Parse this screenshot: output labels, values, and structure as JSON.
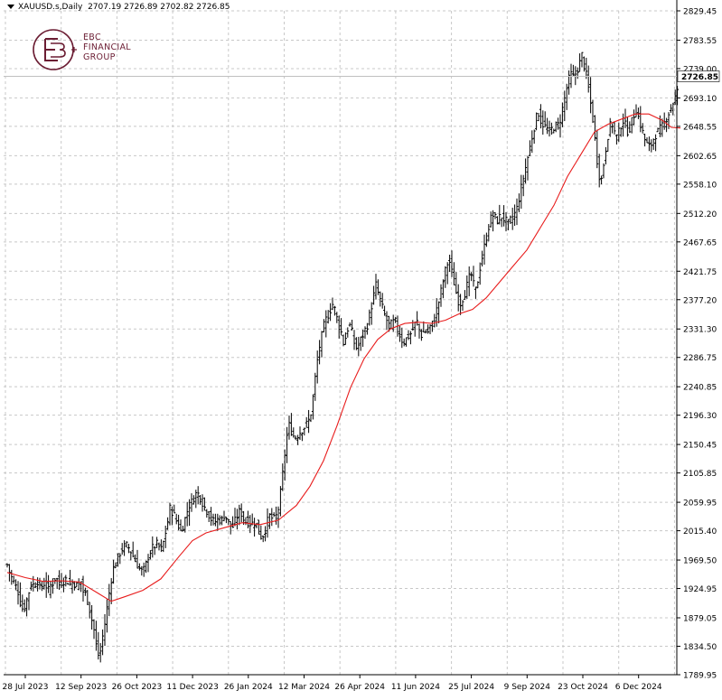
{
  "header": {
    "symbol": "XAUUSD.s,Daily",
    "ohlc": "2707.19 2726.89 2702.82 2726.85"
  },
  "logo": {
    "line1": "EBC",
    "line2": "FINANCIAL",
    "line3": "GROUP",
    "color": "#6b1d33"
  },
  "chart_data": {
    "type": "candlestick",
    "symbol": "XAUUSD.s",
    "timeframe": "Daily",
    "last_price": 2726.85,
    "last_price_label": "2726.85",
    "ylim": [
      1789.95,
      2829.45
    ],
    "y_ticks": [
      "2829.45",
      "2783.55",
      "2739.00",
      "2693.10",
      "2648.55",
      "2602.65",
      "2558.10",
      "2512.20",
      "2467.65",
      "2421.75",
      "2377.20",
      "2331.30",
      "2286.75",
      "2240.85",
      "2196.30",
      "2150.45",
      "2105.85",
      "2059.95",
      "2015.40",
      "1969.50",
      "1924.95",
      "1879.05",
      "1834.50",
      "1789.95"
    ],
    "x_ticks": [
      "28 Jul 2023",
      "12 Sep 2023",
      "26 Oct 2023",
      "11 Dec 2023",
      "26 Jan 2024",
      "12 Mar 2024",
      "26 Apr 2024",
      "11 Jun 2024",
      "25 Jul 2024",
      "9 Sep 2024",
      "23 Oct 2024",
      "6 Dec 2024"
    ],
    "grid": true,
    "colors": {
      "bars": "#000000",
      "ma": "#e81c1c",
      "grid": "#c8c8c8",
      "price_line": "#c0c0c0"
    },
    "close_series": [
      [
        0,
        1962
      ],
      [
        3,
        1948
      ],
      [
        6,
        1938
      ],
      [
        9,
        1930
      ],
      [
        12,
        1920
      ],
      [
        15,
        1900
      ],
      [
        18,
        1890
      ],
      [
        21,
        1905
      ],
      [
        24,
        1920
      ],
      [
        27,
        1935
      ],
      [
        30,
        1928
      ],
      [
        33,
        1940
      ],
      [
        36,
        1925
      ],
      [
        39,
        1930
      ],
      [
        42,
        1935
      ],
      [
        45,
        1920
      ],
      [
        48,
        1930
      ],
      [
        51,
        1935
      ],
      [
        54,
        1945
      ],
      [
        57,
        1930
      ],
      [
        60,
        1935
      ],
      [
        63,
        1938
      ],
      [
        66,
        1940
      ],
      [
        69,
        1930
      ],
      [
        72,
        1935
      ],
      [
        75,
        1932
      ],
      [
        78,
        1928
      ],
      [
        81,
        1940
      ],
      [
        84,
        1920
      ],
      [
        87,
        1915
      ],
      [
        90,
        1900
      ],
      [
        93,
        1880
      ],
      [
        96,
        1860
      ],
      [
        99,
        1830
      ],
      [
        102,
        1815
      ],
      [
        105,
        1845
      ],
      [
        108,
        1870
      ],
      [
        111,
        1900
      ],
      [
        114,
        1930
      ],
      [
        117,
        1955
      ],
      [
        120,
        1965
      ],
      [
        123,
        1975
      ],
      [
        126,
        1985
      ],
      [
        129,
        1990
      ],
      [
        132,
        1992
      ],
      [
        135,
        1988
      ],
      [
        138,
        1980
      ],
      [
        141,
        1970
      ],
      [
        144,
        1962
      ],
      [
        147,
        1955
      ],
      [
        150,
        1950
      ],
      [
        153,
        1960
      ],
      [
        156,
        1975
      ],
      [
        159,
        1985
      ],
      [
        162,
        1990
      ],
      [
        165,
        1995
      ],
      [
        168,
        1990
      ],
      [
        171,
        1985
      ],
      [
        174,
        2005
      ],
      [
        177,
        2025
      ],
      [
        180,
        2050
      ],
      [
        183,
        2045
      ],
      [
        186,
        2035
      ],
      [
        189,
        2025
      ],
      [
        192,
        2015
      ],
      [
        195,
        2025
      ],
      [
        198,
        2040
      ],
      [
        201,
        2055
      ],
      [
        204,
        2060
      ],
      [
        207,
        2070
      ],
      [
        210,
        2075
      ],
      [
        213,
        2070
      ],
      [
        216,
        2060
      ],
      [
        219,
        2050
      ],
      [
        222,
        2045
      ],
      [
        225,
        2035
      ],
      [
        228,
        2030
      ],
      [
        231,
        2030
      ],
      [
        234,
        2035
      ],
      [
        237,
        2030
      ],
      [
        240,
        2040
      ],
      [
        243,
        2035
      ],
      [
        246,
        2025
      ],
      [
        249,
        2020
      ],
      [
        252,
        2030
      ],
      [
        255,
        2040
      ],
      [
        258,
        2048
      ],
      [
        261,
        2035
      ],
      [
        264,
        2030
      ],
      [
        267,
        2030
      ],
      [
        270,
        2025
      ],
      [
        273,
        2030
      ],
      [
        276,
        2025
      ],
      [
        279,
        2010
      ],
      [
        282,
        2005
      ],
      [
        285,
        2015
      ],
      [
        288,
        2030
      ],
      [
        291,
        2040
      ],
      [
        294,
        2032
      ],
      [
        297,
        2035
      ],
      [
        300,
        2050
      ],
      [
        303,
        2080
      ],
      [
        306,
        2120
      ],
      [
        309,
        2160
      ],
      [
        312,
        2180
      ],
      [
        315,
        2170
      ],
      [
        318,
        2160
      ],
      [
        321,
        2165
      ],
      [
        324,
        2170
      ],
      [
        327,
        2175
      ],
      [
        330,
        2180
      ],
      [
        333,
        2185
      ],
      [
        336,
        2200
      ],
      [
        339,
        2230
      ],
      [
        342,
        2270
      ],
      [
        345,
        2300
      ],
      [
        348,
        2320
      ],
      [
        351,
        2340
      ],
      [
        354,
        2350
      ],
      [
        357,
        2360
      ],
      [
        360,
        2370
      ],
      [
        363,
        2360
      ],
      [
        366,
        2340
      ],
      [
        369,
        2330
      ],
      [
        372,
        2310
      ],
      [
        375,
        2320
      ],
      [
        378,
        2340
      ],
      [
        381,
        2330
      ],
      [
        384,
        2310
      ],
      [
        387,
        2300
      ],
      [
        390,
        2310
      ],
      [
        393,
        2320
      ],
      [
        396,
        2330
      ],
      [
        399,
        2340
      ],
      [
        402,
        2360
      ],
      [
        405,
        2380
      ],
      [
        408,
        2400
      ],
      [
        411,
        2385
      ],
      [
        414,
        2370
      ],
      [
        417,
        2355
      ],
      [
        420,
        2345
      ],
      [
        423,
        2335
      ],
      [
        426,
        2340
      ],
      [
        429,
        2345
      ],
      [
        432,
        2330
      ],
      [
        435,
        2320
      ],
      [
        438,
        2310
      ],
      [
        441,
        2315
      ],
      [
        444,
        2320
      ],
      [
        447,
        2325
      ],
      [
        450,
        2335
      ],
      [
        453,
        2345
      ],
      [
        456,
        2330
      ],
      [
        459,
        2320
      ],
      [
        462,
        2330
      ],
      [
        465,
        2325
      ],
      [
        468,
        2335
      ],
      [
        471,
        2340
      ],
      [
        474,
        2355
      ],
      [
        477,
        2370
      ],
      [
        480,
        2390
      ],
      [
        483,
        2410
      ],
      [
        486,
        2430
      ],
      [
        489,
        2440
      ],
      [
        492,
        2420
      ],
      [
        495,
        2400
      ],
      [
        498,
        2380
      ],
      [
        501,
        2370
      ],
      [
        504,
        2380
      ],
      [
        507,
        2390
      ],
      [
        510,
        2405
      ],
      [
        513,
        2420
      ],
      [
        516,
        2400
      ],
      [
        519,
        2390
      ],
      [
        522,
        2420
      ],
      [
        525,
        2440
      ],
      [
        528,
        2460
      ],
      [
        531,
        2480
      ],
      [
        534,
        2500
      ],
      [
        537,
        2510
      ],
      [
        540,
        2505
      ],
      [
        543,
        2500
      ],
      [
        546,
        2510
      ],
      [
        549,
        2505
      ],
      [
        552,
        2500
      ],
      [
        555,
        2495
      ],
      [
        558,
        2505
      ],
      [
        561,
        2510
      ],
      [
        564,
        2520
      ],
      [
        567,
        2540
      ],
      [
        570,
        2560
      ],
      [
        573,
        2580
      ],
      [
        576,
        2600
      ],
      [
        579,
        2620
      ],
      [
        582,
        2640
      ],
      [
        585,
        2660
      ],
      [
        588,
        2670
      ],
      [
        591,
        2655
      ],
      [
        594,
        2650
      ],
      [
        597,
        2645
      ],
      [
        600,
        2640
      ],
      [
        603,
        2645
      ],
      [
        606,
        2650
      ],
      [
        609,
        2648
      ],
      [
        612,
        2660
      ],
      [
        615,
        2680
      ],
      [
        618,
        2700
      ],
      [
        621,
        2720
      ],
      [
        624,
        2730
      ],
      [
        627,
        2725
      ],
      [
        630,
        2735
      ],
      [
        633,
        2745
      ],
      [
        636,
        2760
      ],
      [
        639,
        2740
      ],
      [
        642,
        2720
      ],
      [
        645,
        2690
      ],
      [
        648,
        2660
      ],
      [
        651,
        2620
      ],
      [
        654,
        2580
      ],
      [
        657,
        2560
      ],
      [
        660,
        2590
      ],
      [
        663,
        2620
      ],
      [
        666,
        2645
      ],
      [
        669,
        2655
      ],
      [
        672,
        2640
      ],
      [
        675,
        2630
      ],
      [
        678,
        2645
      ],
      [
        681,
        2660
      ],
      [
        684,
        2650
      ],
      [
        687,
        2640
      ],
      [
        690,
        2650
      ],
      [
        693,
        2665
      ],
      [
        696,
        2675
      ],
      [
        699,
        2660
      ],
      [
        702,
        2645
      ],
      [
        705,
        2630
      ],
      [
        708,
        2620
      ],
      [
        711,
        2615
      ],
      [
        714,
        2625
      ],
      [
        717,
        2635
      ],
      [
        720,
        2640
      ],
      [
        723,
        2645
      ],
      [
        726,
        2650
      ],
      [
        729,
        2660
      ],
      [
        732,
        2670
      ],
      [
        735,
        2680
      ],
      [
        738,
        2690
      ],
      [
        741,
        2700
      ],
      [
        744,
        2710
      ],
      [
        747,
        2718
      ]
    ],
    "ma_series": [
      [
        0,
        1950
      ],
      [
        20,
        1942
      ],
      [
        40,
        1936
      ],
      [
        60,
        1937
      ],
      [
        80,
        1935
      ],
      [
        100,
        1918
      ],
      [
        115,
        1905
      ],
      [
        130,
        1912
      ],
      [
        150,
        1922
      ],
      [
        170,
        1940
      ],
      [
        190,
        1975
      ],
      [
        205,
        2000
      ],
      [
        220,
        2012
      ],
      [
        240,
        2020
      ],
      [
        260,
        2028
      ],
      [
        280,
        2025
      ],
      [
        300,
        2032
      ],
      [
        320,
        2055
      ],
      [
        335,
        2085
      ],
      [
        350,
        2125
      ],
      [
        365,
        2180
      ],
      [
        380,
        2240
      ],
      [
        395,
        2285
      ],
      [
        410,
        2315
      ],
      [
        425,
        2332
      ],
      [
        440,
        2340
      ],
      [
        455,
        2342
      ],
      [
        470,
        2340
      ],
      [
        485,
        2345
      ],
      [
        500,
        2355
      ],
      [
        515,
        2362
      ],
      [
        530,
        2380
      ],
      [
        545,
        2405
      ],
      [
        560,
        2430
      ],
      [
        575,
        2455
      ],
      [
        590,
        2490
      ],
      [
        605,
        2525
      ],
      [
        620,
        2570
      ],
      [
        635,
        2605
      ],
      [
        650,
        2640
      ],
      [
        665,
        2652
      ],
      [
        680,
        2660
      ],
      [
        695,
        2668
      ],
      [
        710,
        2668
      ],
      [
        725,
        2658
      ],
      [
        735,
        2647
      ],
      [
        745,
        2646
      ]
    ]
  }
}
